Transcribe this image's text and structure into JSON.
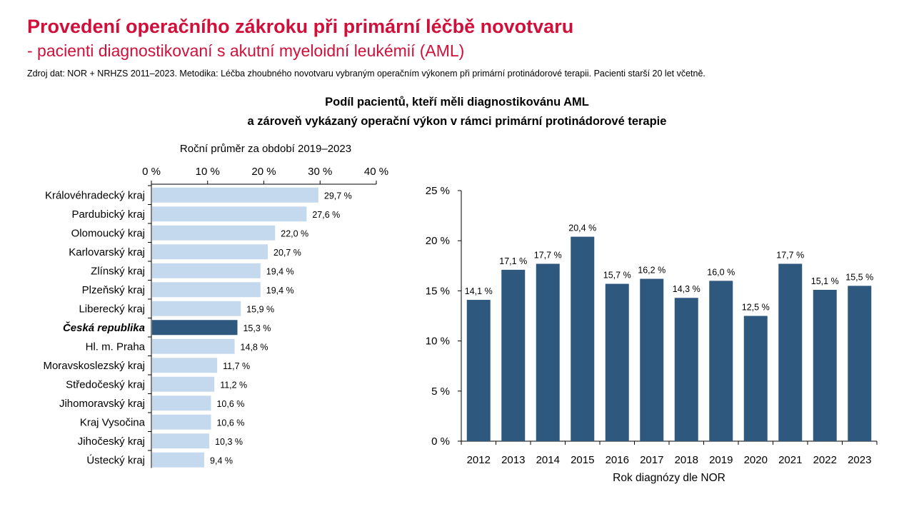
{
  "header": {
    "title": "Provedení operačního zákroku při primární léčbě novotvaru",
    "subtitle": "- pacienti diagnostikovaní s akutní myeloidní leukémií (AML)",
    "source": "Zdroj dat: NOR + NRHZS 2011–2023. Metodika: Léčba zhoubného novotvaru vybraným operačním výkonem při primární protinádorové terapii. Pacienti starší 20 let včetně."
  },
  "chart_heading": {
    "line1": "Podíl pacientů, kteří měli diagnostikovánu AML",
    "line2": "a zároveň vykázaný operační výkon v rámci primární protinádorové terapie"
  },
  "chart_data": [
    {
      "type": "bar",
      "orientation": "horizontal",
      "title": "Roční průměr za období 2019–2023",
      "categories": [
        "Královéhradecký kraj",
        "Pardubický kraj",
        "Olomoucký kraj",
        "Karlovarský kraj",
        "Zlínský kraj",
        "Plzeňský kraj",
        "Liberecký kraj",
        "Česká republika",
        "Hl. m. Praha",
        "Moravskoslezský kraj",
        "Středočeský kraj",
        "Jihomoravský kraj",
        "Kraj Vysočina",
        "Jihočeský kraj",
        "Ústecký kraj"
      ],
      "values": [
        29.7,
        27.6,
        22.0,
        20.7,
        19.4,
        19.4,
        15.9,
        15.3,
        14.8,
        11.7,
        11.2,
        10.6,
        10.6,
        10.3,
        9.4
      ],
      "value_labels": [
        "29,7 %",
        "27,6 %",
        "22,0 %",
        "20,7 %",
        "19,4 %",
        "19,4 %",
        "15,9 %",
        "15,3 %",
        "14,8 %",
        "11,7 %",
        "11,2 %",
        "10,6 %",
        "10,6 %",
        "10,3 %",
        "9,4 %"
      ],
      "highlight_category": "Česká republika",
      "xlim": [
        0,
        40
      ],
      "xticks": [
        0,
        10,
        20,
        30,
        40
      ],
      "xtick_labels": [
        "0 %",
        "10 %",
        "20 %",
        "30 %",
        "40 %"
      ],
      "axis_position": "top",
      "grid": false,
      "colors": {
        "bar": "#c5d9ee",
        "highlight": "#2f587f"
      }
    },
    {
      "type": "bar",
      "orientation": "vertical",
      "categories": [
        "2012",
        "2013",
        "2014",
        "2015",
        "2016",
        "2017",
        "2018",
        "2019",
        "2020",
        "2021",
        "2022",
        "2023"
      ],
      "values": [
        14.1,
        17.1,
        17.7,
        20.4,
        15.7,
        16.2,
        14.3,
        16.0,
        12.5,
        17.7,
        15.1,
        15.5
      ],
      "value_labels": [
        "14,1 %",
        "17,1 %",
        "17,7 %",
        "20,4 %",
        "15,7 %",
        "16,2 %",
        "14,3 %",
        "16,0 %",
        "12,5 %",
        "17,7 %",
        "15,1 %",
        "15,5 %"
      ],
      "xlabel": "Rok diagnózy dle NOR",
      "ylim": [
        0,
        25
      ],
      "yticks": [
        0,
        5,
        10,
        15,
        20,
        25
      ],
      "ytick_labels": [
        "0 %",
        "5 %",
        "10 %",
        "15 %",
        "20 %",
        "25 %"
      ],
      "grid": false,
      "colors": {
        "bar": "#2f587f"
      }
    }
  ]
}
